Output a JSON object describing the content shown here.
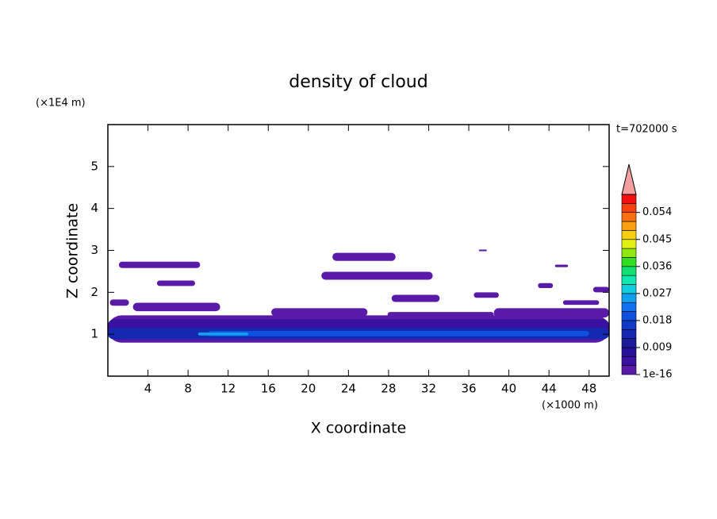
{
  "chart_data": {
    "type": "contour",
    "title": "density of cloud",
    "time_label": "t=702000 s",
    "x_label": "X coordinate",
    "y_label": "Z coordinate",
    "x_unit": "(×1000 m)",
    "y_unit": "(×1E4 m)",
    "xlim": [
      0,
      50
    ],
    "xticks": [
      4,
      8,
      12,
      16,
      20,
      24,
      28,
      32,
      36,
      40,
      44,
      48
    ],
    "ylim": [
      0,
      6
    ],
    "yticks": [
      1,
      2,
      3,
      4,
      5
    ],
    "colorbar": {
      "lim": [
        1e-16,
        0.06
      ],
      "ticks": [
        1e-16,
        0.009,
        0.018,
        0.027,
        0.036,
        0.045,
        0.054
      ],
      "colors": [
        "#5a1aa8",
        "#3a10a0",
        "#26109a",
        "#1a1a9a",
        "#1428b0",
        "#1238c8",
        "#1050e0",
        "#1070f0",
        "#10a0f0",
        "#10d0e0",
        "#10e8b0",
        "#10e070",
        "#30e020",
        "#90e810",
        "#e0f010",
        "#f8d010",
        "#f8a010",
        "#f87010",
        "#f84010",
        "#f01010"
      ],
      "extend_color": "#f4a0a0"
    },
    "patches": [
      {
        "x": [
          0,
          50
        ],
        "z": [
          0.8,
          1.45
        ],
        "value": 0.001
      },
      {
        "x": [
          0,
          50
        ],
        "z": [
          1.05,
          1.36
        ],
        "value": 0.004
      },
      {
        "x": [
          0,
          50
        ],
        "z": [
          0.88,
          1.15
        ],
        "value": 0.013
      },
      {
        "x": [
          10,
          48
        ],
        "z": [
          0.95,
          1.08
        ],
        "value": 0.02
      },
      {
        "x": [
          9,
          14
        ],
        "z": [
          0.97,
          1.04
        ],
        "value": 0.027
      },
      {
        "x": [
          1.1,
          9.2
        ],
        "z": [
          2.58,
          2.73
        ],
        "value": 0.001
      },
      {
        "x": [
          4.9,
          8.7
        ],
        "z": [
          2.15,
          2.28
        ],
        "value": 0.001
      },
      {
        "x": [
          0.2,
          2.1
        ],
        "z": [
          1.68,
          1.83
        ],
        "value": 0.001
      },
      {
        "x": [
          2.5,
          11.2
        ],
        "z": [
          1.55,
          1.75
        ],
        "value": 0.001
      },
      {
        "x": [
          22.4,
          28.7
        ],
        "z": [
          2.75,
          2.94
        ],
        "value": 0.001
      },
      {
        "x": [
          21.3,
          32.4
        ],
        "z": [
          2.3,
          2.49
        ],
        "value": 0.001
      },
      {
        "x": [
          28.3,
          33.1
        ],
        "z": [
          1.77,
          1.94
        ],
        "value": 0.001
      },
      {
        "x": [
          36.5,
          39
        ],
        "z": [
          1.87,
          2.0
        ],
        "value": 0.001
      },
      {
        "x": [
          37,
          37.8
        ],
        "z": [
          2.98,
          3.02
        ],
        "value": 0.001
      },
      {
        "x": [
          44.6,
          45.9
        ],
        "z": [
          2.6,
          2.66
        ],
        "value": 0.001
      },
      {
        "x": [
          42.9,
          44.4
        ],
        "z": [
          2.1,
          2.22
        ],
        "value": 0.001
      },
      {
        "x": [
          48.4,
          50
        ],
        "z": [
          2.0,
          2.13
        ],
        "value": 0.001
      },
      {
        "x": [
          45.4,
          49
        ],
        "z": [
          1.7,
          1.81
        ],
        "value": 0.001
      },
      {
        "x": [
          38.5,
          50
        ],
        "z": [
          1.4,
          1.62
        ],
        "value": 0.001
      },
      {
        "x": [
          16.3,
          25.9
        ],
        "z": [
          1.43,
          1.62
        ],
        "value": 0.001
      },
      {
        "x": [
          27.9,
          38.5
        ],
        "z": [
          1.4,
          1.53
        ],
        "value": 0.001
      }
    ]
  }
}
